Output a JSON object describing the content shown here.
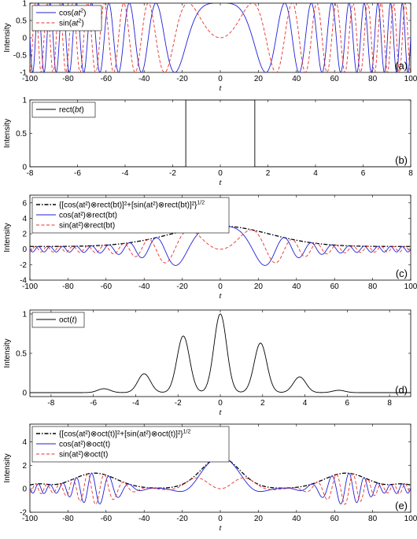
{
  "colors": {
    "cos": "#1f1fd6",
    "sin": "#e8302a",
    "env": "#000000",
    "rect": "#000000"
  },
  "chart_data": [
    {
      "id": "a",
      "type": "line",
      "panel_label": "(a)",
      "xlabel": "t",
      "ylabel": "Intensity",
      "xlim": [
        -100,
        100
      ],
      "ylim": [
        -1,
        1
      ],
      "xticks": [
        -100,
        -80,
        -60,
        -40,
        -20,
        0,
        20,
        40,
        60,
        80,
        100
      ],
      "yticks": [
        -1,
        -0.5,
        0,
        0.5,
        1
      ],
      "ytick_labels": [
        "-1",
        "-0.5",
        "0",
        "0.5",
        "1"
      ],
      "legend_pos": "top-left",
      "series": [
        {
          "label_pre": "cos(",
          "label_it": "at",
          "label_sup": "2",
          "label_post": ")",
          "style": "solid",
          "color_key": "cos",
          "formula": "cos(a t^2)",
          "params": {
            "a": 0.0055
          }
        },
        {
          "label_pre": "sin(",
          "label_it": "at",
          "label_sup": "2",
          "label_post": ")",
          "style": "dashed",
          "color_key": "sin",
          "formula": "sin(a t^2)",
          "params": {
            "a": 0.0055
          }
        }
      ]
    },
    {
      "id": "b",
      "type": "line",
      "panel_label": "(b)",
      "xlabel": "t",
      "ylabel": "Intensity",
      "xlim": [
        -8,
        8
      ],
      "ylim": [
        0,
        1
      ],
      "xticks": [
        -8,
        -6,
        -4,
        -2,
        0,
        2,
        4,
        6,
        8
      ],
      "yticks": [
        0,
        0.5,
        1
      ],
      "ytick_labels": [
        "0",
        "0.5",
        "1"
      ],
      "legend_pos": "top-left",
      "series": [
        {
          "label_pre": "rect(",
          "label_it": "bt",
          "label_sup": "",
          "label_post": ")",
          "style": "solid",
          "color_key": "rect",
          "formula": "rect(b t)",
          "params": {
            "half_width": 1.45
          }
        }
      ]
    },
    {
      "id": "c",
      "type": "line",
      "panel_label": "(c)",
      "xlabel": "t",
      "ylabel": "Intensity",
      "xlim": [
        -100,
        100
      ],
      "ylim": [
        -4,
        7
      ],
      "xticks": [
        -100,
        -80,
        -60,
        -40,
        -20,
        0,
        20,
        40,
        60,
        80,
        100
      ],
      "yticks": [
        -4,
        -2,
        0,
        2,
        4,
        6
      ],
      "ytick_labels": [
        "-4",
        "-2",
        "0",
        "2",
        "4",
        "6"
      ],
      "legend_pos": "top-left",
      "series": [
        {
          "label_text": "{[cos(at²)⊗rect(bt)]²+[sin(at²)⊗rect(bt)]²}^1/2",
          "style": "dashdot",
          "color_key": "env",
          "formula": "envelope",
          "params": {
            "peak": 3.0,
            "sigma": 26
          }
        },
        {
          "label_text": "cos(at²)⊗rect(bt)",
          "style": "solid",
          "color_key": "cos",
          "formula": "env*cos(a t^2)",
          "params": {
            "a": 0.0055
          }
        },
        {
          "label_text": "sin(at²)⊗rect(bt)",
          "style": "dashed",
          "color_key": "sin",
          "formula": "env*sin(a t^2)",
          "params": {
            "a": 0.0055
          }
        }
      ]
    },
    {
      "id": "d",
      "type": "line",
      "panel_label": "(d)",
      "xlabel": "t",
      "ylabel": "Intensity",
      "xlim": [
        -9,
        9
      ],
      "ylim": [
        -0.05,
        1.05
      ],
      "xticks": [
        -8,
        -6,
        -4,
        -2,
        0,
        2,
        4,
        6,
        8
      ],
      "yticks": [
        0,
        0.5,
        1
      ],
      "ytick_labels": [
        "0",
        "0.5",
        "1"
      ],
      "legend_pos": "top-left",
      "series": [
        {
          "label_pre": "oct(",
          "label_it": "t",
          "label_sup": "",
          "label_post": ")",
          "style": "solid",
          "color_key": "env",
          "formula": "oct(t)",
          "params": {}
        }
      ],
      "peaks": [
        {
          "x": -5.5,
          "y": 0.05
        },
        {
          "x": -3.6,
          "y": 0.24
        },
        {
          "x": -1.75,
          "y": 0.72
        },
        {
          "x": 0,
          "y": 1.0
        },
        {
          "x": 1.9,
          "y": 0.63
        },
        {
          "x": 3.75,
          "y": 0.2
        },
        {
          "x": 5.6,
          "y": 0.03
        }
      ]
    },
    {
      "id": "e",
      "type": "line",
      "panel_label": "(e)",
      "xlabel": "t",
      "ylabel": "Intensity",
      "xlim": [
        -100,
        100
      ],
      "ylim": [
        -2,
        5.5
      ],
      "xticks": [
        -100,
        -80,
        -60,
        -40,
        -20,
        0,
        20,
        40,
        60,
        80,
        100
      ],
      "yticks": [
        -2,
        0,
        2,
        4
      ],
      "ytick_labels": [
        "-2",
        "0",
        "2",
        "4"
      ],
      "legend_pos": "top-left",
      "series": [
        {
          "label_text": "{[cos(at²)⊗oct(t)]²+[sin(at²)⊗oct(t)]²}^1/2",
          "style": "dashdot",
          "color_key": "env",
          "formula": "envelope",
          "params": {}
        },
        {
          "label_text": "cos(at²)⊗oct(t)",
          "style": "solid",
          "color_key": "cos",
          "formula": "env*cos(a t^2)",
          "params": {
            "a": 0.0055
          }
        },
        {
          "label_text": "sin(at²)⊗oct(t)",
          "style": "dashed",
          "color_key": "sin",
          "formula": "env*sin(a t^2)",
          "params": {
            "a": 0.0055
          }
        }
      ],
      "envelope_lobes": [
        {
          "center": 0,
          "height": 2.65,
          "width": 14
        },
        {
          "center": -66,
          "height": 1.3,
          "width": 16
        },
        {
          "center": 66,
          "height": 1.3,
          "width": 16
        },
        {
          "center": -96,
          "height": 0.35,
          "width": 8
        },
        {
          "center": 96,
          "height": 0.35,
          "width": 8
        }
      ]
    }
  ]
}
